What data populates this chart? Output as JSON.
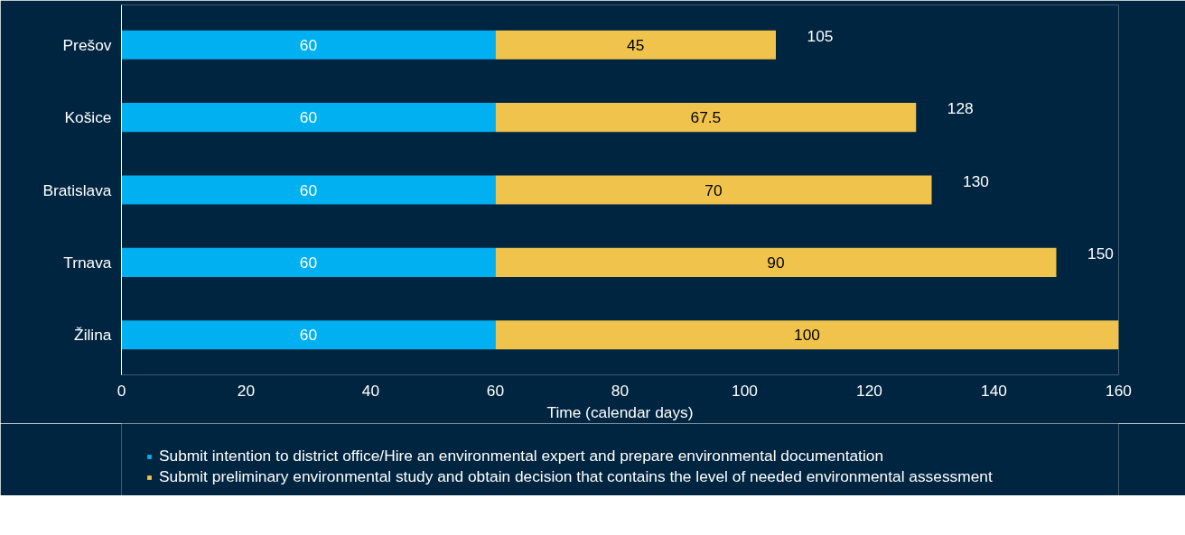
{
  "chart_data": {
    "type": "bar",
    "orientation": "horizontal",
    "stacked": true,
    "categories": [
      "Prešov",
      "Košice",
      "Bratislava",
      "Trnava",
      "Žilina"
    ],
    "series": [
      {
        "name": "Submit intention to district office/Hire an environmental expert and prepare environmental documentation",
        "color": "#00b0f0",
        "values": [
          60,
          60,
          60,
          60,
          60
        ]
      },
      {
        "name": "Submit preliminary environmental study and obtain decision that contains the level of needed environmental assessment",
        "color": "#f0c44c",
        "values": [
          45,
          67.5,
          70,
          90,
          100
        ]
      }
    ],
    "totals": [
      "105",
      "128",
      "130",
      "150",
      "160"
    ],
    "data_labels": true,
    "xlabel": "Time (calendar days)",
    "xlim": [
      0,
      160
    ],
    "xticks": [
      0,
      20,
      40,
      60,
      80,
      100,
      120,
      140,
      160
    ],
    "grid": false,
    "legend": "bottom"
  }
}
